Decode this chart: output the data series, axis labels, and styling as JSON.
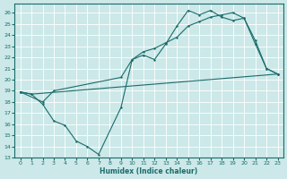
{
  "xlabel": "Humidex (Indice chaleur)",
  "xlim": [
    -0.5,
    23.5
  ],
  "ylim": [
    13,
    26.8
  ],
  "yticks": [
    13,
    14,
    15,
    16,
    17,
    18,
    19,
    20,
    21,
    22,
    23,
    24,
    25,
    26
  ],
  "xticks": [
    0,
    1,
    2,
    3,
    4,
    5,
    6,
    7,
    8,
    9,
    10,
    11,
    12,
    13,
    14,
    15,
    16,
    17,
    18,
    19,
    20,
    21,
    22,
    23
  ],
  "bg_color": "#cce8e8",
  "line_color": "#1a6b6b",
  "grid_color": "#ffffff",
  "line1_x": [
    0,
    1,
    2,
    3,
    4,
    5,
    6,
    7,
    9,
    10,
    11,
    12,
    13,
    14,
    15,
    16,
    17,
    18,
    19,
    20,
    21,
    22,
    23
  ],
  "line1_y": [
    18.9,
    18.7,
    17.8,
    16.3,
    15.9,
    14.5,
    14.0,
    13.3,
    17.5,
    21.8,
    22.2,
    21.8,
    23.2,
    24.8,
    26.2,
    25.8,
    26.2,
    25.6,
    25.3,
    25.5,
    23.2,
    21.0,
    20.5
  ],
  "line2_x": [
    0,
    2,
    3,
    9,
    10,
    11,
    12,
    13,
    14,
    15,
    16,
    17,
    18,
    19,
    20,
    21,
    22,
    23
  ],
  "line2_y": [
    18.9,
    18.0,
    19.0,
    20.2,
    21.8,
    22.5,
    22.8,
    23.3,
    23.8,
    24.8,
    25.2,
    25.6,
    25.8,
    26.0,
    25.5,
    23.5,
    21.0,
    20.5
  ],
  "line3_x": [
    0,
    1,
    23
  ],
  "line3_y": [
    18.9,
    18.7,
    20.5
  ]
}
